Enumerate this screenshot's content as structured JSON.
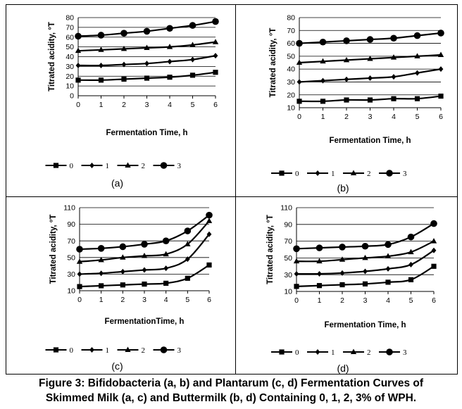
{
  "caption": {
    "line1": "Figure 3: Bifidobacteria (a, b) and Plantarum (c, d) Fermentation Curves of",
    "line2": "Skimmed Milk (a, c) and Buttermilk (b, d) Containing 0, 1, 2, 3% of WPH."
  },
  "chart_data": [
    {
      "type": "line",
      "panel_label": "(a)",
      "xlabel": "Fermentation Time, h",
      "ylabel": "Titrated acidity, °T",
      "x": [
        0,
        1,
        2,
        3,
        4,
        5,
        6
      ],
      "ylim": [
        0,
        80
      ],
      "yticks": [
        0,
        10,
        20,
        30,
        40,
        50,
        60,
        70,
        80
      ],
      "grid": "horizontal",
      "legend_position": "bottom",
      "series": [
        {
          "name": "0",
          "marker": "square",
          "values": [
            16,
            16,
            17,
            18,
            19,
            21,
            24
          ]
        },
        {
          "name": "1",
          "marker": "diamond",
          "values": [
            31,
            31,
            32,
            33,
            35,
            37,
            41
          ]
        },
        {
          "name": "2",
          "marker": "triangle",
          "values": [
            46,
            47,
            48,
            49,
            50,
            52,
            55
          ]
        },
        {
          "name": "3",
          "marker": "circle",
          "values": [
            61,
            62,
            64,
            66,
            69,
            72,
            76
          ]
        }
      ]
    },
    {
      "type": "line",
      "panel_label": "(b)",
      "xlabel": "Fermentation Time, h",
      "ylabel": "Titrated acidity, °T",
      "x": [
        0,
        1,
        2,
        3,
        4,
        5,
        6
      ],
      "ylim": [
        10,
        80
      ],
      "yticks": [
        10,
        20,
        30,
        40,
        50,
        60,
        70,
        80
      ],
      "grid": "horizontal",
      "legend_position": "bottom",
      "series": [
        {
          "name": "0",
          "marker": "square",
          "values": [
            15,
            15,
            16,
            16,
            17,
            17,
            19
          ]
        },
        {
          "name": "1",
          "marker": "diamond",
          "values": [
            30,
            31,
            32,
            33,
            34,
            37,
            40
          ]
        },
        {
          "name": "2",
          "marker": "triangle",
          "values": [
            45,
            46,
            47,
            48,
            49,
            50,
            51
          ]
        },
        {
          "name": "3",
          "marker": "circle",
          "values": [
            60,
            61,
            62,
            63,
            64,
            66,
            68
          ]
        }
      ]
    },
    {
      "type": "line",
      "panel_label": "(c)",
      "xlabel": "FermentationTime, h",
      "ylabel": "Titrated acidity, °T",
      "x": [
        0,
        1,
        2,
        3,
        4,
        5,
        6
      ],
      "ylim": [
        10,
        110
      ],
      "yticks": [
        10,
        30,
        50,
        70,
        90,
        110
      ],
      "grid": "horizontal",
      "legend_position": "bottom",
      "series": [
        {
          "name": "0",
          "marker": "square",
          "values": [
            15,
            16,
            17,
            18,
            19,
            25,
            41
          ]
        },
        {
          "name": "1",
          "marker": "diamond",
          "values": [
            30,
            31,
            33,
            35,
            37,
            48,
            78
          ]
        },
        {
          "name": "2",
          "marker": "triangle",
          "values": [
            45,
            47,
            50,
            52,
            54,
            66,
            94
          ]
        },
        {
          "name": "3",
          "marker": "circle",
          "values": [
            60,
            61,
            63,
            66,
            70,
            82,
            101
          ]
        }
      ]
    },
    {
      "type": "line",
      "panel_label": "(d)",
      "xlabel": "Fermentation Time, h",
      "ylabel": "Titrated acidity, °T",
      "x": [
        0,
        1,
        2,
        3,
        4,
        5,
        6
      ],
      "ylim": [
        10,
        110
      ],
      "yticks": [
        10,
        30,
        50,
        70,
        90,
        110
      ],
      "grid": "horizontal",
      "legend_position": "bottom",
      "series": [
        {
          "name": "0",
          "marker": "square",
          "values": [
            16,
            17,
            18,
            19,
            21,
            24,
            40
          ]
        },
        {
          "name": "1",
          "marker": "diamond",
          "values": [
            31,
            31,
            32,
            34,
            37,
            42,
            59
          ]
        },
        {
          "name": "2",
          "marker": "triangle",
          "values": [
            46,
            46,
            48,
            50,
            52,
            57,
            70
          ]
        },
        {
          "name": "3",
          "marker": "circle",
          "values": [
            61,
            62,
            63,
            64,
            66,
            75,
            91
          ]
        }
      ]
    }
  ]
}
